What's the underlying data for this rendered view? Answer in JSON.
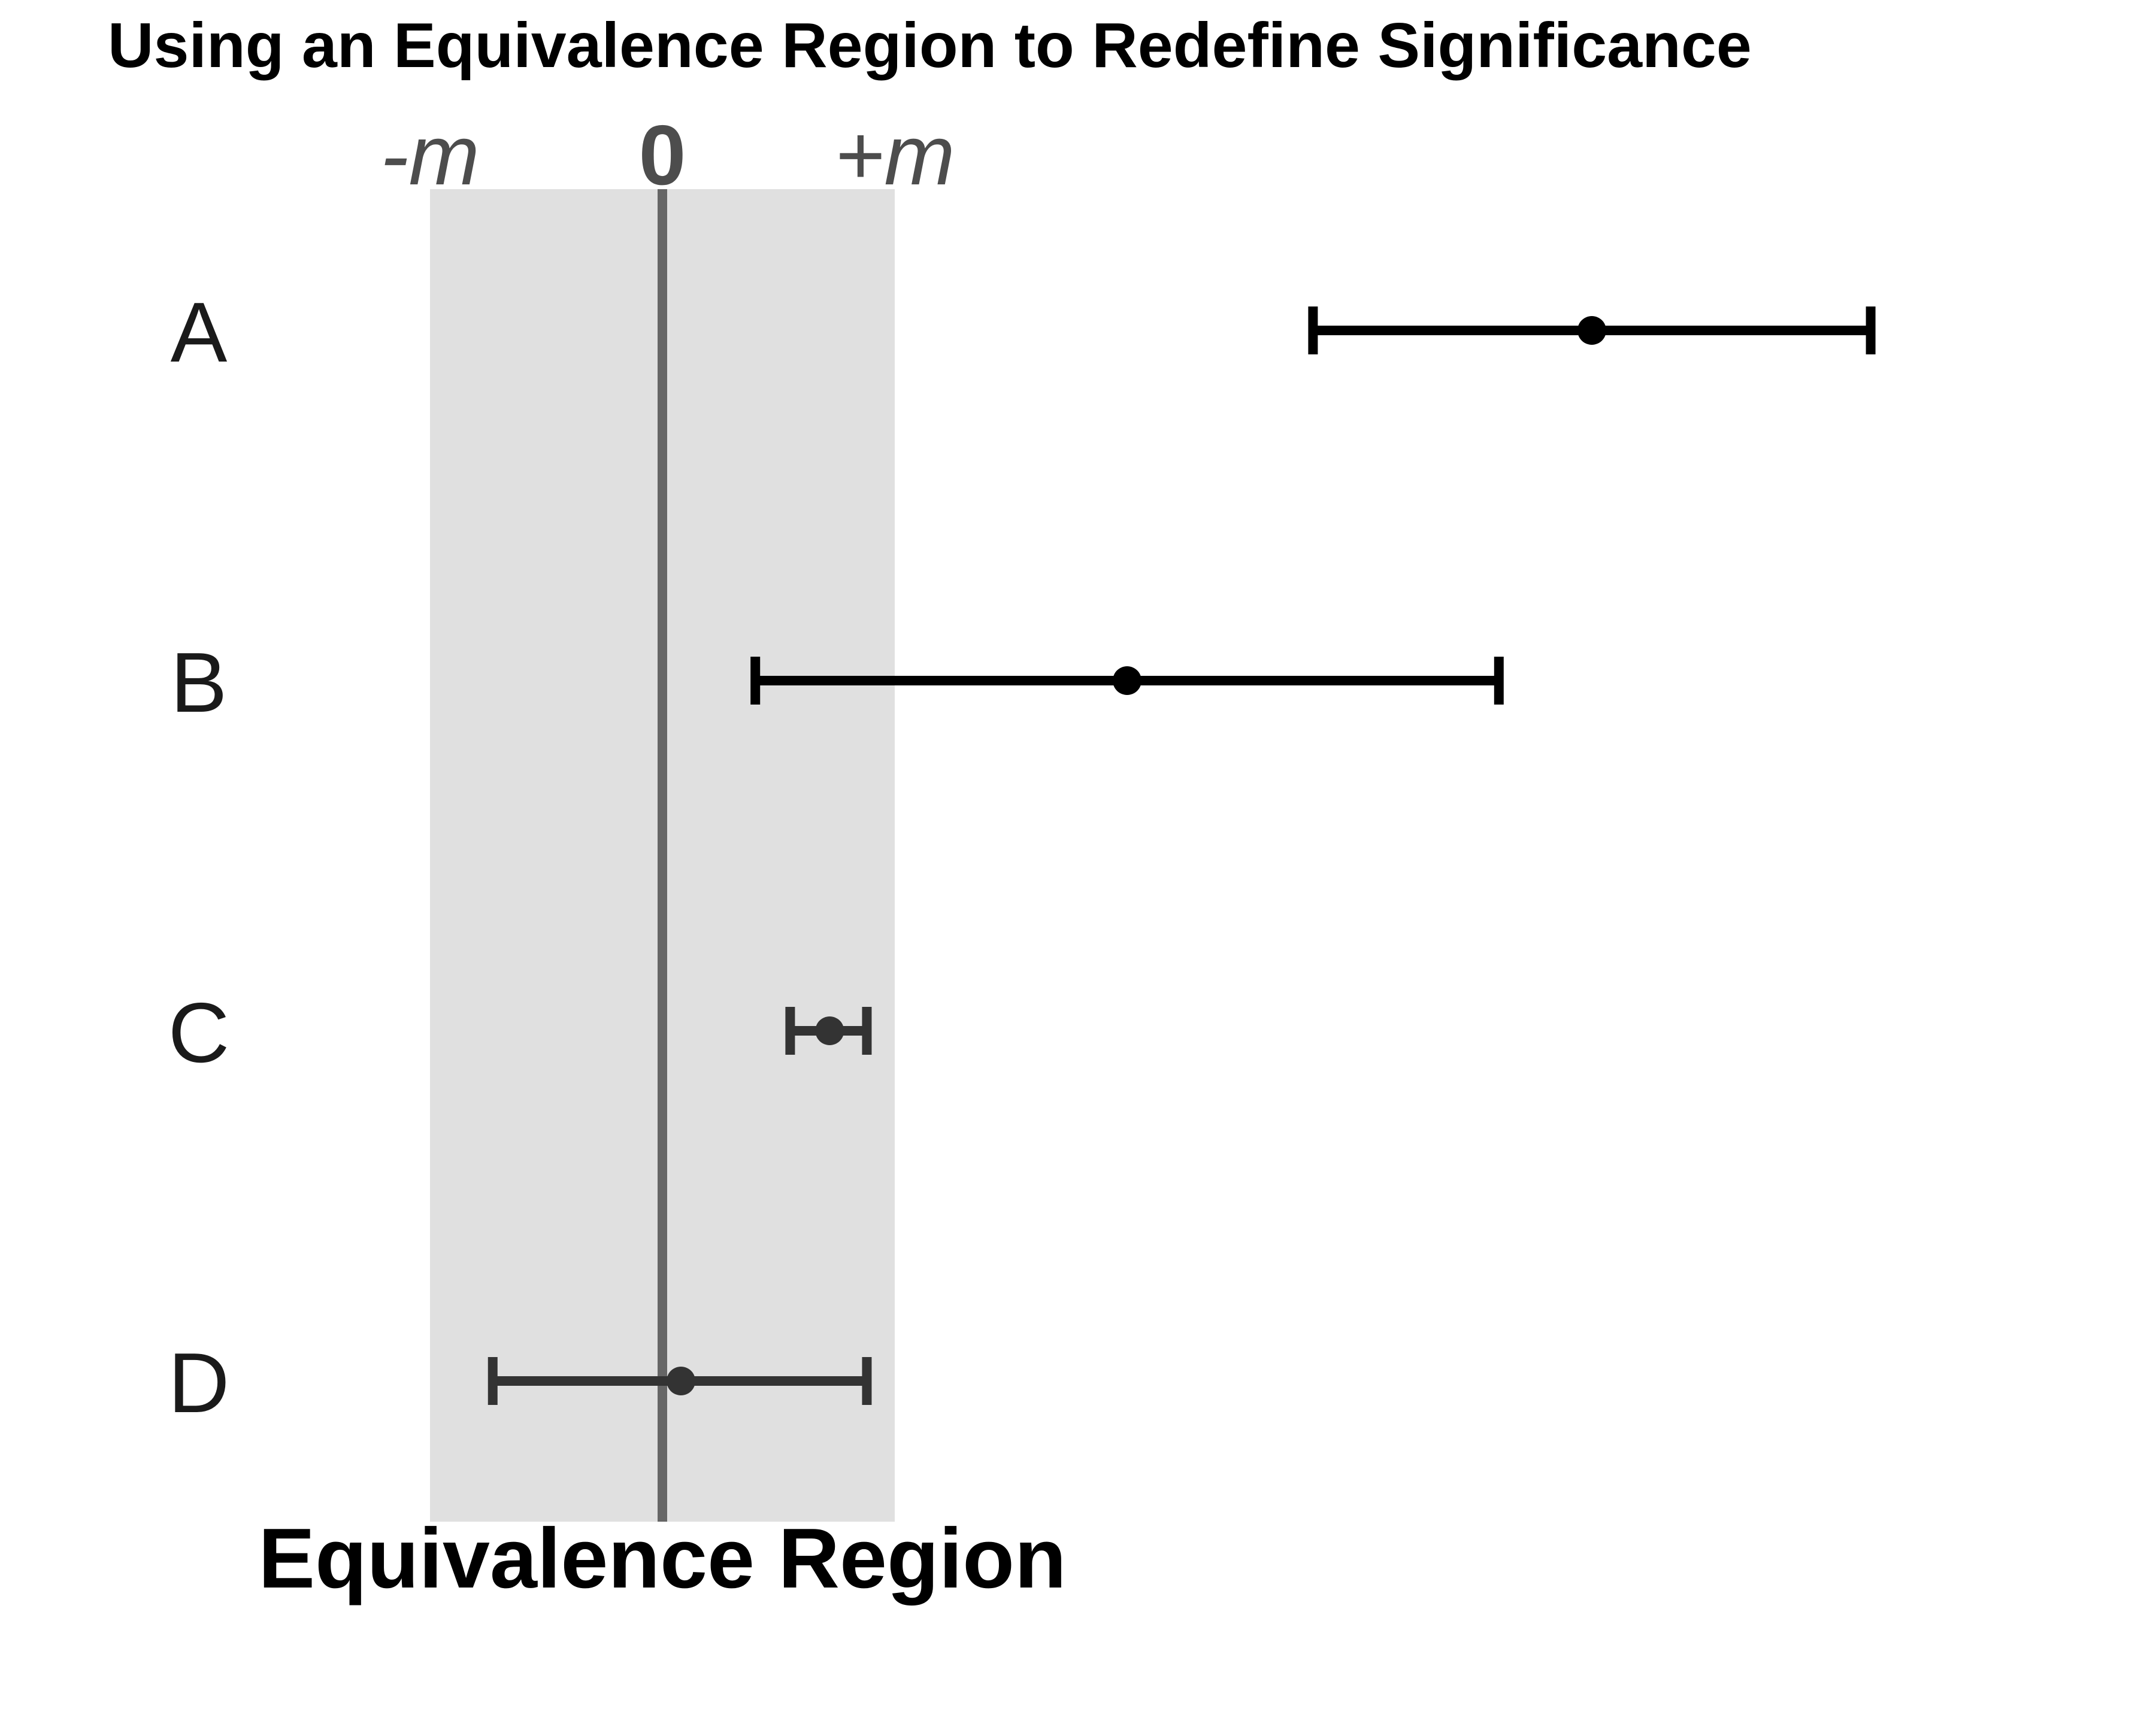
{
  "chart_data": {
    "type": "errorbar",
    "title": "Using an Equivalence Region to Redefine Significance",
    "xlim": [
      -1.0,
      4.4
    ],
    "equivalence_margin": 1,
    "ticks": [
      {
        "value": -1,
        "label": "-m",
        "style": "italic"
      },
      {
        "value": 0,
        "label": "0",
        "style": "bold"
      },
      {
        "value": 1,
        "label": "+m",
        "style": "italic"
      }
    ],
    "region_label": "Equivalence Region",
    "categories": [
      "A",
      "B",
      "C",
      "D"
    ],
    "estimates": [
      {
        "label": "A",
        "point": 4.0,
        "lower": 2.8,
        "upper": 5.2,
        "color": "#000000"
      },
      {
        "label": "B",
        "point": 2.0,
        "lower": 0.4,
        "upper": 3.6,
        "color": "#000000"
      },
      {
        "label": "C",
        "point": 0.72,
        "lower": 0.55,
        "upper": 0.88,
        "color": "#333333"
      },
      {
        "label": "D",
        "point": 0.08,
        "lower": -0.73,
        "upper": 0.88,
        "color": "#333333"
      }
    ],
    "colors": {
      "region_fill": "#e0e0e0",
      "zero_line": "#666666",
      "bar_outside": "#000000",
      "bar_inside": "#333333"
    }
  }
}
